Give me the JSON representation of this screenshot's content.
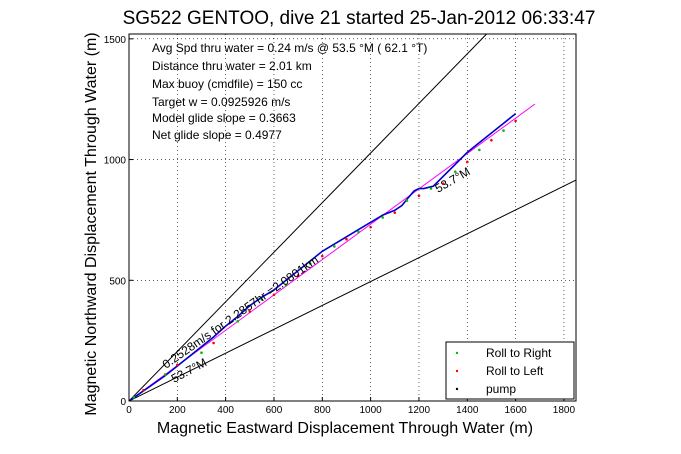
{
  "chart_data": {
    "type": "line",
    "title": "SG522 GENTOO, dive 21 started 25-Jan-2012 06:33:47",
    "xlabel": "Magnetic Eastward Displacement Through Water (m)",
    "ylabel": "Magnetic Northward Displacement Through Water (m)",
    "xlim": [
      0,
      1850
    ],
    "ylim": [
      0,
      1520
    ],
    "xticks": [
      0,
      200,
      400,
      600,
      800,
      1000,
      1200,
      1400,
      1600,
      1800
    ],
    "yticks": [
      0,
      500,
      1000,
      1500
    ],
    "grid": true,
    "legend_position": "bottom-right",
    "info_lines": [
      "Avg Spd thru water =  0.24 m/s @  53.5   °M ( 62.1 °T)",
      "Distance thru water =  2.01 km",
      "Max buoy (cmdfile) = 150 cc",
      "Target w = 0.0925926 m/s",
      "Model glide slope = 0.3663",
      "Net glide slope = 0.4977"
    ],
    "annotations": {
      "upper_heading": "53.7°M",
      "lower_heading": "53.7°M",
      "speed_text": "0.2528m/s for 2.2857hr =2.0801km"
    },
    "series": [
      {
        "name": "Roll to Right",
        "color": "#00bb00",
        "marker": "dot",
        "x": [
          20,
          150,
          300,
          450,
          550,
          650,
          750,
          850,
          950,
          1050,
          1150,
          1250,
          1350,
          1450,
          1550
        ],
        "y": [
          15,
          110,
          200,
          330,
          420,
          480,
          570,
          640,
          700,
          760,
          830,
          880,
          950,
          1040,
          1120
        ]
      },
      {
        "name": "Roll to Left",
        "color": "#ff0000",
        "marker": "dot",
        "x": [
          60,
          200,
          350,
          500,
          600,
          700,
          800,
          900,
          1000,
          1100,
          1200,
          1300,
          1400,
          1500,
          1600
        ],
        "y": [
          45,
          150,
          240,
          370,
          440,
          520,
          600,
          670,
          720,
          780,
          850,
          900,
          990,
          1080,
          1160
        ]
      },
      {
        "name": "pump",
        "color": "#000000",
        "marker": "dot",
        "x": [
          0
        ],
        "y": [
          0
        ]
      }
    ],
    "track": {
      "color": "#0000cc",
      "x": [
        0,
        50,
        100,
        150,
        200,
        250,
        300,
        350,
        400,
        450,
        500,
        550,
        600,
        650,
        700,
        750,
        800,
        850,
        900,
        950,
        1000,
        1050,
        1100,
        1130,
        1150,
        1180,
        1200,
        1220,
        1260,
        1300,
        1350,
        1400,
        1450,
        1500,
        1550,
        1600
      ],
      "y": [
        0,
        35,
        70,
        105,
        145,
        185,
        225,
        265,
        310,
        350,
        395,
        430,
        460,
        500,
        540,
        580,
        620,
        650,
        680,
        710,
        740,
        770,
        790,
        810,
        835,
        870,
        880,
        880,
        890,
        930,
        980,
        1030,
        1070,
        1110,
        1150,
        1190
      ]
    },
    "model_line": {
      "color": "#ff00ff",
      "x": [
        0,
        1680
      ],
      "y": [
        0,
        1230
      ]
    },
    "glide_lines": [
      {
        "color": "#000000",
        "x": [
          0,
          1480
        ],
        "y": [
          0,
          1520
        ]
      },
      {
        "color": "#000000",
        "x": [
          0,
          1850
        ],
        "y": [
          0,
          915
        ]
      }
    ]
  }
}
